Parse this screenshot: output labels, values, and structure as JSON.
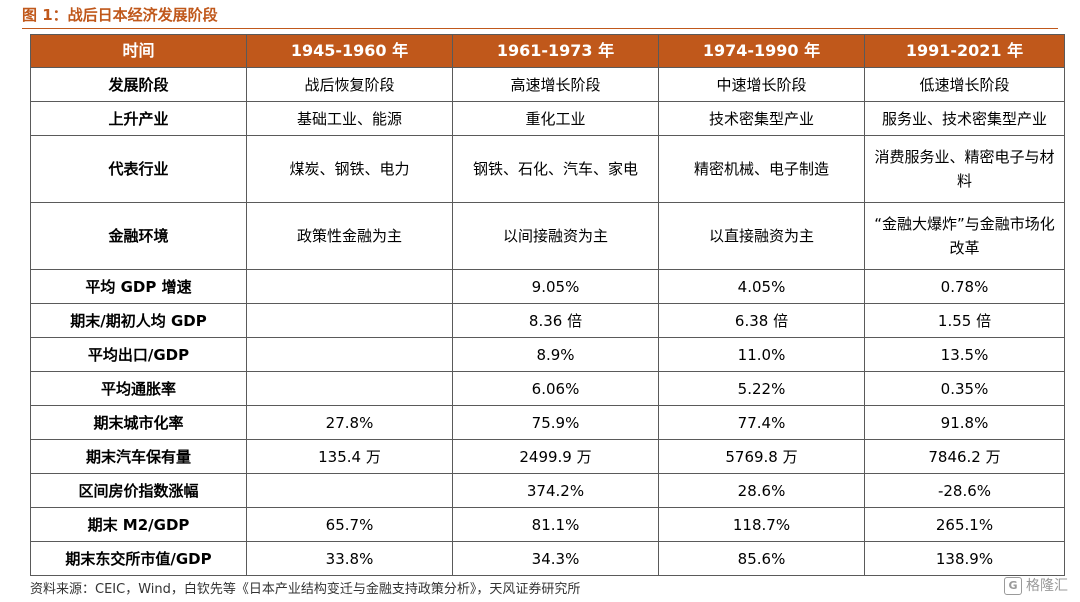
{
  "figure": {
    "title": "图 1：战后日本经济发展阶段",
    "source": "资料来源：CEIC，Wind，白钦先等《日本产业结构变迁与金融支持政策分析》，天风证券研究所",
    "watermark": "格隆汇",
    "watermark_icon": "logo-g-icon"
  },
  "table": {
    "headers": [
      "时间",
      "1945-1960 年",
      "1961-1973 年",
      "1974-1990 年",
      "1991-2021 年"
    ],
    "rows": [
      {
        "label": "发展阶段",
        "cells": [
          "战后恢复阶段",
          "高速增长阶段",
          "中速增长阶段",
          "低速增长阶段"
        ]
      },
      {
        "label": "上升产业",
        "cells": [
          "基础工业、能源",
          "重化工业",
          "技术密集型产业",
          "服务业、技术密集型产业"
        ]
      },
      {
        "label": "代表行业",
        "cells": [
          "煤炭、钢铁、电力",
          "钢铁、石化、汽车、家电",
          "精密机械、电子制造",
          "消费服务业、精密电子与材料"
        ]
      },
      {
        "label": "金融环境",
        "cells": [
          "政策性金融为主",
          "以间接融资为主",
          "以直接融资为主",
          "“金融大爆炸”与金融市场化改革"
        ]
      },
      {
        "label": "平均 GDP 增速",
        "cells": [
          "",
          "9.05%",
          "4.05%",
          "0.78%"
        ]
      },
      {
        "label": "期末/期初人均 GDP",
        "cells": [
          "",
          "8.36 倍",
          "6.38 倍",
          "1.55 倍"
        ]
      },
      {
        "label": "平均出口/GDP",
        "cells": [
          "",
          "8.9%",
          "11.0%",
          "13.5%"
        ]
      },
      {
        "label": "平均通胀率",
        "cells": [
          "",
          "6.06%",
          "5.22%",
          "0.35%"
        ]
      },
      {
        "label": "期末城市化率",
        "cells": [
          "27.8%",
          "75.9%",
          "77.4%",
          "91.8%"
        ]
      },
      {
        "label": "期末汽车保有量",
        "cells": [
          "135.4 万",
          "2499.9 万",
          "5769.8 万",
          "7846.2 万"
        ]
      },
      {
        "label": "区间房价指数涨幅",
        "cells": [
          "",
          "374.2%",
          "28.6%",
          "-28.6%"
        ]
      },
      {
        "label": "期末 M2/GDP",
        "cells": [
          "65.7%",
          "81.1%",
          "118.7%",
          "265.1%"
        ]
      },
      {
        "label": "期末东交所市值/GDP",
        "cells": [
          "33.8%",
          "34.3%",
          "85.6%",
          "138.9%"
        ]
      }
    ]
  },
  "colors": {
    "header_bg": "#c0581b",
    "title_text": "#c0581b",
    "border": "#5a5a5a"
  }
}
